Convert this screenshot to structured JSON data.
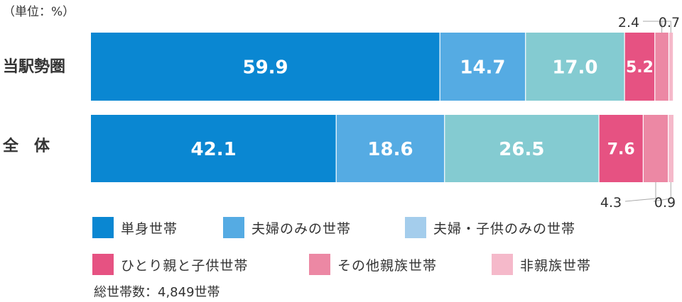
{
  "unit_label": "（単位：%）",
  "total_label": "総世帯数：4,849世帯",
  "chart_data": {
    "type": "bar",
    "orientation": "horizontal",
    "stacked": true,
    "categories": [
      "当駅勢圏",
      "全　体"
    ],
    "xlim": [
      0,
      100
    ],
    "series": [
      {
        "name": "単身世帯",
        "color": "#0a87d2",
        "values": [
          59.9,
          42.1
        ]
      },
      {
        "name": "夫婦のみの世帯",
        "color": "#55abe3",
        "values": [
          14.7,
          18.6
        ]
      },
      {
        "name": "夫婦・子供のみの世帯",
        "color": "#84cbd1",
        "values": [
          17.0,
          26.5
        ]
      },
      {
        "name": "ひとり親と子供世帯",
        "color": "#e65282",
        "values": [
          5.2,
          7.6
        ]
      },
      {
        "name": "その他親族世帯",
        "color": "#ec88a4",
        "values": [
          2.4,
          4.3
        ]
      },
      {
        "name": "非親族世帯",
        "color": "#f5b9ca",
        "values": [
          0.7,
          0.9
        ]
      }
    ],
    "legend_colors": [
      "#0a87d2",
      "#55abe3",
      "#a4cdec",
      "#e65282",
      "#ec88a4",
      "#f5b9ca"
    ],
    "legend_position": "bottom",
    "grid": false
  }
}
